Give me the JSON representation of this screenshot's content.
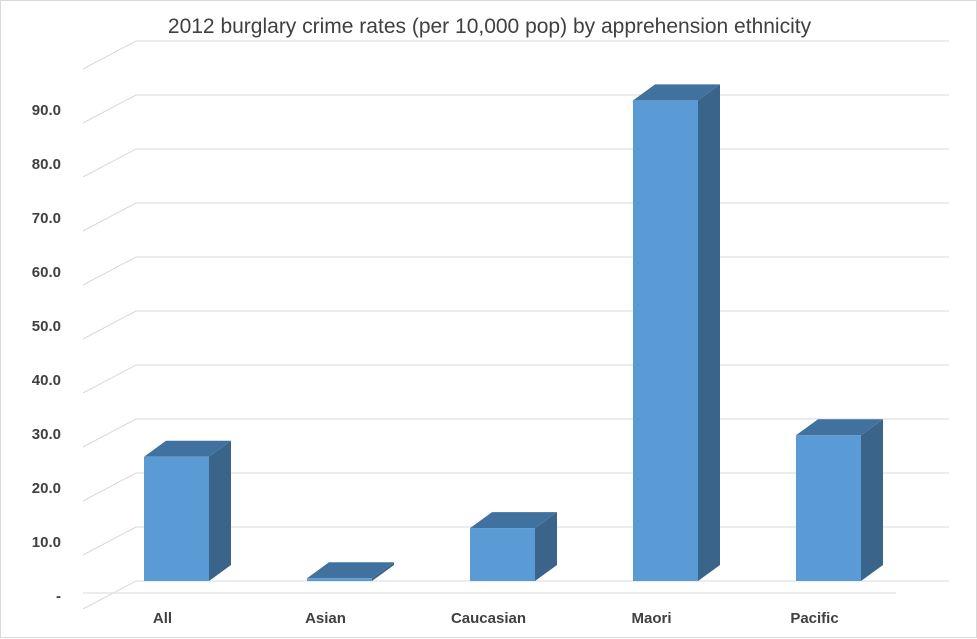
{
  "chart_data": {
    "type": "bar",
    "title": "2012 burglary crime rates (per 10,000 pop) by apprehension ethnicity",
    "categories": [
      "All",
      "Asian",
      "Caucasian",
      "Maori",
      "Pacific"
    ],
    "values": [
      23.0,
      0.5,
      9.8,
      89.0,
      27.0
    ],
    "yticks": [
      "-",
      "10.0",
      "20.0",
      "30.0",
      "40.0",
      "50.0",
      "60.0",
      "70.0",
      "80.0",
      "90.0"
    ],
    "ylim": [
      0,
      100
    ],
    "grid": true,
    "style": "3d-column",
    "colors": {
      "front": "#5b9bd5",
      "top": "#41729f",
      "side": "#3a6489"
    }
  }
}
